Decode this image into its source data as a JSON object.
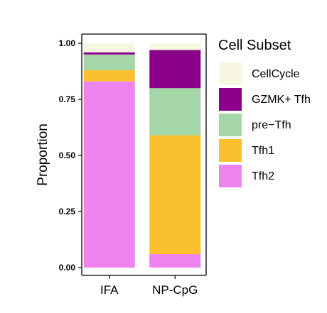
{
  "chart_data": {
    "type": "bar",
    "stacked": true,
    "ylabel": "Proportion",
    "xlabel": "",
    "ylim": [
      0,
      1.0
    ],
    "yticks": [
      "0.00",
      "0.25",
      "0.50",
      "0.75",
      "1.00"
    ],
    "categories": [
      "IFA",
      "NP-CpG"
    ],
    "legend": {
      "title": "Cell Subset",
      "position": "right"
    },
    "series": [
      {
        "name": "Tfh2",
        "color": "#EE82EE",
        "values": [
          0.83,
          0.06
        ]
      },
      {
        "name": "Tfh1",
        "color": "#FBC02D",
        "values": [
          0.05,
          0.53
        ]
      },
      {
        "name": "pre−Tfh",
        "color": "#A5D6A7",
        "values": [
          0.07,
          0.21
        ]
      },
      {
        "name": "GZMK+ Tfh",
        "color": "#8B008B",
        "values": [
          0.01,
          0.17
        ]
      },
      {
        "name": "CellCycle",
        "color": "#F7F7E1",
        "values": [
          0.04,
          0.03
        ]
      }
    ],
    "legend_order": [
      "CellCycle",
      "GZMK+ Tfh",
      "pre−Tfh",
      "Tfh1",
      "Tfh2"
    ]
  }
}
